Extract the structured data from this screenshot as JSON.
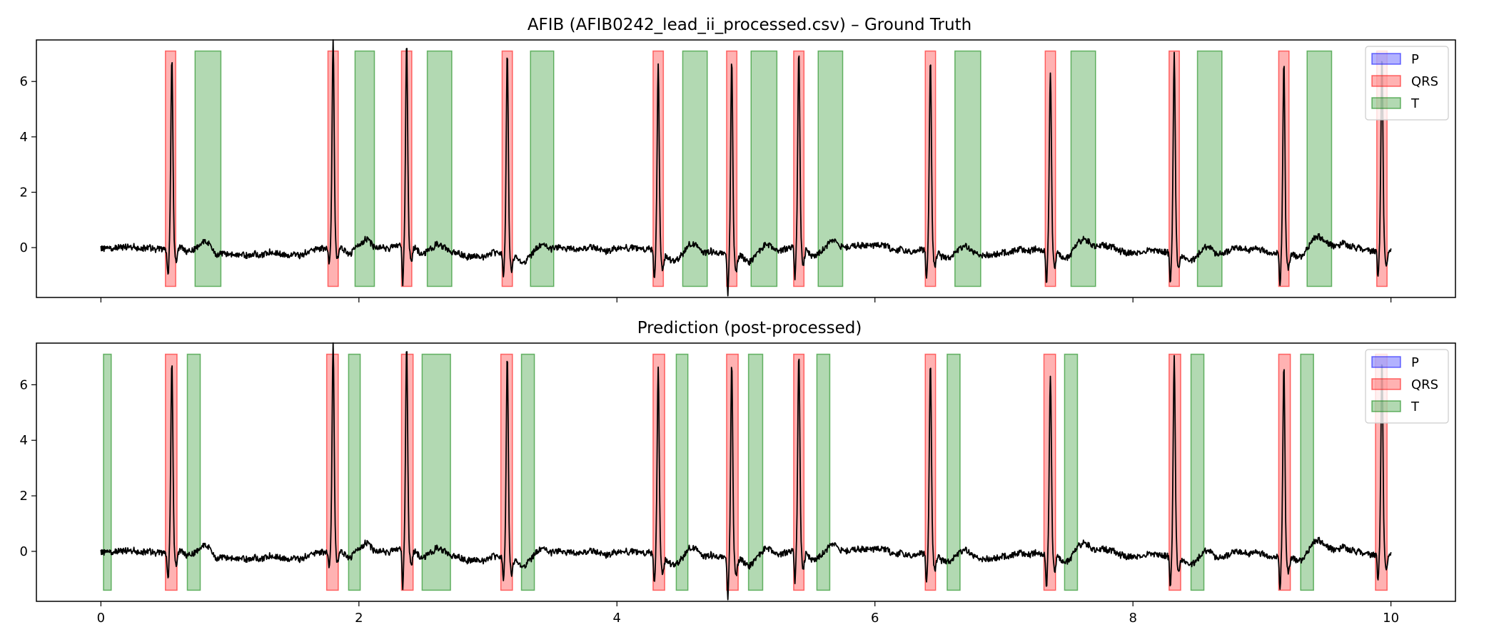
{
  "chart_data": [
    {
      "type": "line",
      "title": "AFIB (AFIB0242_lead_ii_processed.csv) – Ground Truth",
      "xlabel": "",
      "ylabel": "",
      "xlim": [
        -0.5,
        10.5
      ],
      "ylim": [
        -1.8,
        7.5
      ],
      "xticks": [
        0,
        2,
        4,
        6,
        8,
        10
      ],
      "xtick_labels_visible": false,
      "yticks": [
        0,
        2,
        4,
        6
      ],
      "ytick_labels": [
        "0",
        "2",
        "4",
        "6"
      ],
      "grid": false,
      "legend": {
        "placement": "top-right",
        "entries": [
          {
            "name": "P",
            "color": "#0000ff"
          },
          {
            "name": "QRS",
            "color": "#ff0000"
          },
          {
            "name": "T",
            "color": "#008000"
          }
        ]
      },
      "band_range": [
        -1.4,
        7.1
      ],
      "segments": {
        "P": [],
        "QRS": [
          [
            0.5,
            0.58
          ],
          [
            1.76,
            1.84
          ],
          [
            2.33,
            2.41
          ],
          [
            3.11,
            3.19
          ],
          [
            4.28,
            4.36
          ],
          [
            4.85,
            4.93
          ],
          [
            5.37,
            5.45
          ],
          [
            6.39,
            6.47
          ],
          [
            7.32,
            7.4
          ],
          [
            8.28,
            8.36
          ],
          [
            9.13,
            9.21
          ],
          [
            9.89,
            9.97
          ]
        ],
        "T": [
          [
            0.73,
            0.93
          ],
          [
            1.97,
            2.12
          ],
          [
            2.53,
            2.72
          ],
          [
            3.33,
            3.51
          ],
          [
            4.51,
            4.7
          ],
          [
            5.04,
            5.24
          ],
          [
            5.56,
            5.75
          ],
          [
            6.62,
            6.82
          ],
          [
            7.52,
            7.71
          ],
          [
            8.5,
            8.69
          ],
          [
            9.35,
            9.54
          ]
        ]
      },
      "beats": [
        {
          "t": 0.55,
          "amp": 6.6,
          "min": -0.9
        },
        {
          "t": 1.8,
          "amp": 7.1,
          "min": -0.5
        },
        {
          "t": 2.37,
          "amp": 7.0,
          "min": -1.3
        },
        {
          "t": 3.15,
          "amp": 6.9,
          "min": -0.7
        },
        {
          "t": 4.32,
          "amp": 6.5,
          "min": -0.9
        },
        {
          "t": 4.89,
          "amp": 6.8,
          "min": -1.3
        },
        {
          "t": 5.41,
          "amp": 6.8,
          "min": -1.1
        },
        {
          "t": 6.43,
          "amp": 6.7,
          "min": -0.9
        },
        {
          "t": 7.36,
          "amp": 6.3,
          "min": -1.2
        },
        {
          "t": 8.32,
          "amp": 6.9,
          "min": -1.0
        },
        {
          "t": 9.17,
          "amp": 6.7,
          "min": -1.1
        },
        {
          "t": 9.93,
          "amp": 6.7,
          "min": -0.8
        }
      ],
      "signal_color": "#000000"
    },
    {
      "type": "line",
      "title": "Prediction (post-processed)",
      "xlabel": "",
      "ylabel": "",
      "xlim": [
        -0.5,
        10.5
      ],
      "ylim": [
        -1.8,
        7.5
      ],
      "xticks": [
        0,
        2,
        4,
        6,
        8,
        10
      ],
      "xtick_labels": [
        "0",
        "2",
        "4",
        "6",
        "8",
        "10"
      ],
      "yticks": [
        0,
        2,
        4,
        6
      ],
      "ytick_labels": [
        "0",
        "2",
        "4",
        "6"
      ],
      "grid": false,
      "legend": {
        "placement": "top-right",
        "entries": [
          {
            "name": "P",
            "color": "#0000ff"
          },
          {
            "name": "QRS",
            "color": "#ff0000"
          },
          {
            "name": "T",
            "color": "#008000"
          }
        ]
      },
      "band_range": [
        -1.4,
        7.1
      ],
      "segments": {
        "P": [],
        "QRS": [
          [
            0.5,
            0.59
          ],
          [
            1.75,
            1.84
          ],
          [
            2.33,
            2.42
          ],
          [
            3.1,
            3.19
          ],
          [
            4.28,
            4.37
          ],
          [
            4.85,
            4.94
          ],
          [
            5.37,
            5.45
          ],
          [
            6.39,
            6.47
          ],
          [
            7.31,
            7.4
          ],
          [
            8.28,
            8.37
          ],
          [
            9.13,
            9.22
          ],
          [
            9.88,
            9.97
          ]
        ],
        "T": [
          [
            0.02,
            0.08
          ],
          [
            0.67,
            0.77
          ],
          [
            1.92,
            2.01
          ],
          [
            2.49,
            2.71
          ],
          [
            3.26,
            3.36
          ],
          [
            4.46,
            4.55
          ],
          [
            5.02,
            5.13
          ],
          [
            5.55,
            5.65
          ],
          [
            6.56,
            6.66
          ],
          [
            7.47,
            7.57
          ],
          [
            8.45,
            8.55
          ],
          [
            9.3,
            9.4
          ]
        ]
      },
      "beats": [
        {
          "t": 0.55,
          "amp": 6.6,
          "min": -0.9
        },
        {
          "t": 1.8,
          "amp": 7.1,
          "min": -0.5
        },
        {
          "t": 2.37,
          "amp": 7.0,
          "min": -1.3
        },
        {
          "t": 3.15,
          "amp": 6.9,
          "min": -0.7
        },
        {
          "t": 4.32,
          "amp": 6.5,
          "min": -0.9
        },
        {
          "t": 4.89,
          "amp": 6.8,
          "min": -1.3
        },
        {
          "t": 5.41,
          "amp": 6.8,
          "min": -1.1
        },
        {
          "t": 6.43,
          "amp": 6.7,
          "min": -0.9
        },
        {
          "t": 7.36,
          "amp": 6.3,
          "min": -1.2
        },
        {
          "t": 8.32,
          "amp": 6.9,
          "min": -1.0
        },
        {
          "t": 9.17,
          "amp": 6.7,
          "min": -1.1
        },
        {
          "t": 9.93,
          "amp": 6.7,
          "min": -0.8
        }
      ],
      "signal_color": "#000000"
    }
  ]
}
